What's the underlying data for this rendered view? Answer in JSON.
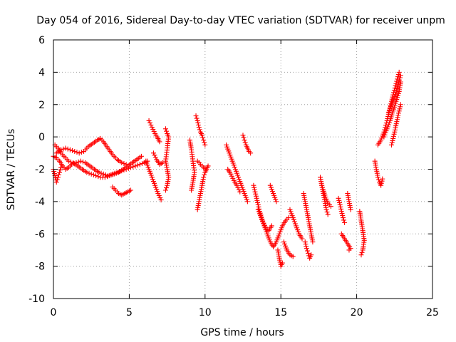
{
  "chart_data": {
    "type": "scatter",
    "title": "Day 054 of 2016, Sidereal Day-to-day VTEC variation (SDTVAR) for receiver unpm",
    "xlabel": "GPS time / hours",
    "ylabel": "SDTVAR / TECUs",
    "xlim": [
      0,
      25
    ],
    "ylim": [
      -10,
      6
    ],
    "xticks": [
      0,
      5,
      10,
      15,
      20,
      25
    ],
    "yticks": [
      -10,
      -8,
      -6,
      -4,
      -2,
      0,
      2,
      4,
      6
    ],
    "xtick_labels": [
      "0",
      "5",
      "10",
      "15",
      "20",
      "25"
    ],
    "ytick_labels": [
      "-10",
      "-8",
      "-6",
      "-4",
      "-2",
      "0",
      "2",
      "4",
      "6"
    ],
    "grid": true,
    "marker": "+",
    "series": [
      {
        "name": "track-1",
        "x": [
          0.0,
          0.2,
          0.4,
          0.6,
          0.8,
          1.0,
          1.2,
          1.5,
          1.8,
          2.1,
          2.4,
          2.7,
          3.0,
          3.3,
          3.6,
          3.9,
          4.2,
          4.5,
          4.8,
          5.1,
          5.4,
          5.7,
          6.0,
          6.2
        ],
        "y": [
          -1.2,
          -1.3,
          -1.5,
          -1.8,
          -2.0,
          -1.9,
          -1.7,
          -1.6,
          -1.5,
          -1.6,
          -1.8,
          -2.0,
          -2.2,
          -2.3,
          -2.4,
          -2.3,
          -2.2,
          -2.1,
          -2.0,
          -1.9,
          -1.8,
          -1.7,
          -1.6,
          -1.5
        ]
      },
      {
        "name": "track-2",
        "x": [
          0.1,
          0.3,
          0.5,
          0.8,
          1.0,
          1.3,
          1.6,
          1.9,
          2.2,
          2.5,
          2.8,
          3.1,
          3.4,
          3.7,
          4.0,
          4.3,
          4.6,
          4.9,
          5.2,
          5.5,
          5.8
        ],
        "y": [
          -0.5,
          -0.7,
          -1.0,
          -1.3,
          -1.5,
          -1.6,
          -1.8,
          -2.0,
          -2.2,
          -2.3,
          -2.4,
          -2.5,
          -2.5,
          -2.4,
          -2.3,
          -2.2,
          -2.0,
          -1.8,
          -1.6,
          -1.4,
          -1.2
        ]
      },
      {
        "name": "track-3",
        "x": [
          0.2,
          0.5,
          0.8,
          1.1,
          1.4,
          1.7,
          2.0,
          2.3,
          2.6,
          2.9,
          3.1,
          3.3,
          3.6,
          3.9,
          4.2,
          4.5,
          4.8
        ],
        "y": [
          -1.0,
          -0.8,
          -0.7,
          -0.8,
          -0.9,
          -1.0,
          -0.9,
          -0.6,
          -0.4,
          -0.2,
          -0.1,
          -0.3,
          -0.7,
          -1.1,
          -1.4,
          -1.6,
          -1.7
        ]
      },
      {
        "name": "track-4",
        "x": [
          0.0,
          0.1,
          0.2,
          0.3,
          0.4,
          0.5
        ],
        "y": [
          -2.0,
          -2.4,
          -2.8,
          -2.5,
          -2.2,
          -1.9
        ]
      },
      {
        "name": "track-5",
        "x": [
          3.9,
          4.1,
          4.3,
          4.5,
          4.7,
          4.9,
          5.1
        ],
        "y": [
          -3.1,
          -3.3,
          -3.5,
          -3.6,
          -3.5,
          -3.4,
          -3.3
        ]
      },
      {
        "name": "track-6",
        "x": [
          6.3,
          6.5,
          6.7,
          6.9,
          7.0
        ],
        "y": [
          1.0,
          0.6,
          0.2,
          -0.1,
          -0.3
        ]
      },
      {
        "name": "track-7",
        "x": [
          6.1,
          6.3,
          6.5,
          6.7,
          6.9,
          7.1
        ],
        "y": [
          -1.5,
          -2.0,
          -2.5,
          -3.0,
          -3.5,
          -3.9
        ]
      },
      {
        "name": "track-8",
        "x": [
          6.6,
          6.8,
          7.0,
          7.2
        ],
        "y": [
          -1.0,
          -1.4,
          -1.7,
          -1.6
        ]
      },
      {
        "name": "track-9",
        "x": [
          7.4,
          7.5,
          7.6,
          7.4,
          7.5,
          7.6,
          7.5,
          7.4
        ],
        "y": [
          0.5,
          0.2,
          0.0,
          -1.5,
          -2.0,
          -2.5,
          -3.0,
          -3.3
        ]
      },
      {
        "name": "track-10",
        "x": [
          9.0,
          9.1,
          9.2,
          9.3,
          9.2,
          9.1
        ],
        "y": [
          -0.2,
          -0.8,
          -1.5,
          -2.2,
          -2.8,
          -3.3
        ]
      },
      {
        "name": "track-11",
        "x": [
          9.4,
          9.5,
          9.6,
          9.7,
          9.8,
          9.9,
          10.0
        ],
        "y": [
          1.3,
          1.0,
          0.6,
          0.3,
          0.1,
          -0.2,
          -0.5
        ]
      },
      {
        "name": "track-12",
        "x": [
          9.5,
          9.7,
          9.9,
          10.1,
          10.2
        ],
        "y": [
          -1.5,
          -1.7,
          -1.9,
          -2.0,
          -1.8
        ]
      },
      {
        "name": "track-13",
        "x": [
          9.5,
          9.6,
          9.7,
          9.8,
          9.9,
          10.0,
          10.1
        ],
        "y": [
          -4.5,
          -4.0,
          -3.5,
          -3.0,
          -2.5,
          -2.2,
          -2.0
        ]
      },
      {
        "name": "track-14",
        "x": [
          11.4,
          11.6,
          11.8,
          12.0,
          12.2,
          12.4,
          12.6,
          12.8
        ],
        "y": [
          -0.5,
          -1.0,
          -1.5,
          -2.0,
          -2.5,
          -3.0,
          -3.5,
          -4.0
        ]
      },
      {
        "name": "track-15",
        "x": [
          11.5,
          11.7,
          11.9,
          12.1,
          12.3
        ],
        "y": [
          -2.0,
          -2.3,
          -2.7,
          -3.0,
          -3.4
        ]
      },
      {
        "name": "track-16",
        "x": [
          12.5,
          12.6,
          12.7,
          12.8,
          12.9,
          13.0
        ],
        "y": [
          0.1,
          -0.2,
          -0.5,
          -0.7,
          -0.9,
          -1.0
        ]
      },
      {
        "name": "track-17",
        "x": [
          13.2,
          13.4,
          13.6,
          13.8,
          14.0,
          14.2,
          14.4
        ],
        "y": [
          -3.0,
          -3.8,
          -4.6,
          -5.2,
          -5.6,
          -5.8,
          -5.5
        ]
      },
      {
        "name": "track-18",
        "x": [
          13.5,
          13.7,
          13.9,
          14.1,
          14.3,
          14.5,
          14.7,
          14.9,
          15.1,
          15.3,
          15.5
        ],
        "y": [
          -4.5,
          -5.0,
          -5.5,
          -6.0,
          -6.5,
          -6.8,
          -6.5,
          -6.0,
          -5.5,
          -5.2,
          -5.0
        ]
      },
      {
        "name": "track-19",
        "x": [
          14.3,
          14.5,
          14.7
        ],
        "y": [
          -3.0,
          -3.5,
          -4.0
        ]
      },
      {
        "name": "track-20",
        "x": [
          14.8,
          14.9,
          15.0,
          15.1
        ],
        "y": [
          -7.0,
          -7.5,
          -8.0,
          -7.8
        ]
      },
      {
        "name": "track-21",
        "x": [
          15.2,
          15.4,
          15.6,
          15.8
        ],
        "y": [
          -6.5,
          -7.0,
          -7.3,
          -7.4
        ]
      },
      {
        "name": "track-22",
        "x": [
          15.6,
          15.8,
          16.0,
          16.2,
          16.4
        ],
        "y": [
          -4.5,
          -5.0,
          -5.5,
          -6.0,
          -6.3
        ]
      },
      {
        "name": "track-23",
        "x": [
          16.5,
          16.6,
          16.7,
          16.8,
          16.9,
          17.0,
          17.1
        ],
        "y": [
          -3.5,
          -4.0,
          -4.5,
          -5.0,
          -5.5,
          -6.0,
          -6.5
        ]
      },
      {
        "name": "track-24",
        "x": [
          16.6,
          16.7,
          16.8,
          16.9,
          17.0
        ],
        "y": [
          -6.5,
          -6.9,
          -7.2,
          -7.5,
          -7.3
        ]
      },
      {
        "name": "track-25",
        "x": [
          17.6,
          17.7,
          17.8,
          17.9,
          18.0,
          18.1
        ],
        "y": [
          -2.5,
          -3.0,
          -3.5,
          -4.0,
          -4.5,
          -4.8
        ]
      },
      {
        "name": "track-26",
        "x": [
          17.7,
          17.9,
          18.1,
          18.3
        ],
        "y": [
          -3.0,
          -3.6,
          -4.1,
          -4.3
        ]
      },
      {
        "name": "track-27",
        "x": [
          18.8,
          18.9,
          19.0,
          19.1,
          19.2
        ],
        "y": [
          -3.8,
          -4.2,
          -4.6,
          -5.0,
          -5.3
        ]
      },
      {
        "name": "track-28",
        "x": [
          19.0,
          19.2,
          19.4,
          19.6,
          19.5
        ],
        "y": [
          -6.0,
          -6.3,
          -6.6,
          -6.9,
          -7.0
        ]
      },
      {
        "name": "track-29",
        "x": [
          19.4,
          19.5,
          19.6
        ],
        "y": [
          -3.5,
          -4.0,
          -4.5
        ]
      },
      {
        "name": "track-30",
        "x": [
          20.2,
          20.3,
          20.4,
          20.5,
          20.4,
          20.3
        ],
        "y": [
          -4.6,
          -5.2,
          -5.8,
          -6.4,
          -7.0,
          -7.3
        ]
      },
      {
        "name": "track-31",
        "x": [
          21.2,
          21.3,
          21.4,
          21.5,
          21.6,
          21.7
        ],
        "y": [
          -1.5,
          -2.0,
          -2.5,
          -2.8,
          -3.0,
          -2.6
        ]
      },
      {
        "name": "track-32",
        "x": [
          21.4,
          21.6,
          21.8,
          22.0,
          22.2,
          22.4,
          22.6,
          22.8
        ],
        "y": [
          -0.5,
          -0.2,
          0.3,
          1.0,
          1.8,
          2.6,
          3.3,
          4.0
        ]
      },
      {
        "name": "track-33",
        "x": [
          21.8,
          22.0,
          22.2,
          22.4,
          22.6,
          22.8,
          22.9
        ],
        "y": [
          0.0,
          0.5,
          1.0,
          1.6,
          2.2,
          2.8,
          3.4
        ]
      },
      {
        "name": "track-34",
        "x": [
          22.3,
          22.5,
          22.7,
          22.9
        ],
        "y": [
          -0.5,
          0.3,
          1.2,
          2.0
        ]
      },
      {
        "name": "track-35",
        "x": [
          22.1,
          22.3,
          22.5,
          22.7,
          22.9
        ],
        "y": [
          1.5,
          2.0,
          2.5,
          3.1,
          3.8
        ]
      }
    ]
  },
  "colors": {
    "marker": "#ff0000",
    "grid": "#a0a0a0",
    "axis": "#000000",
    "background": "#ffffff"
  }
}
